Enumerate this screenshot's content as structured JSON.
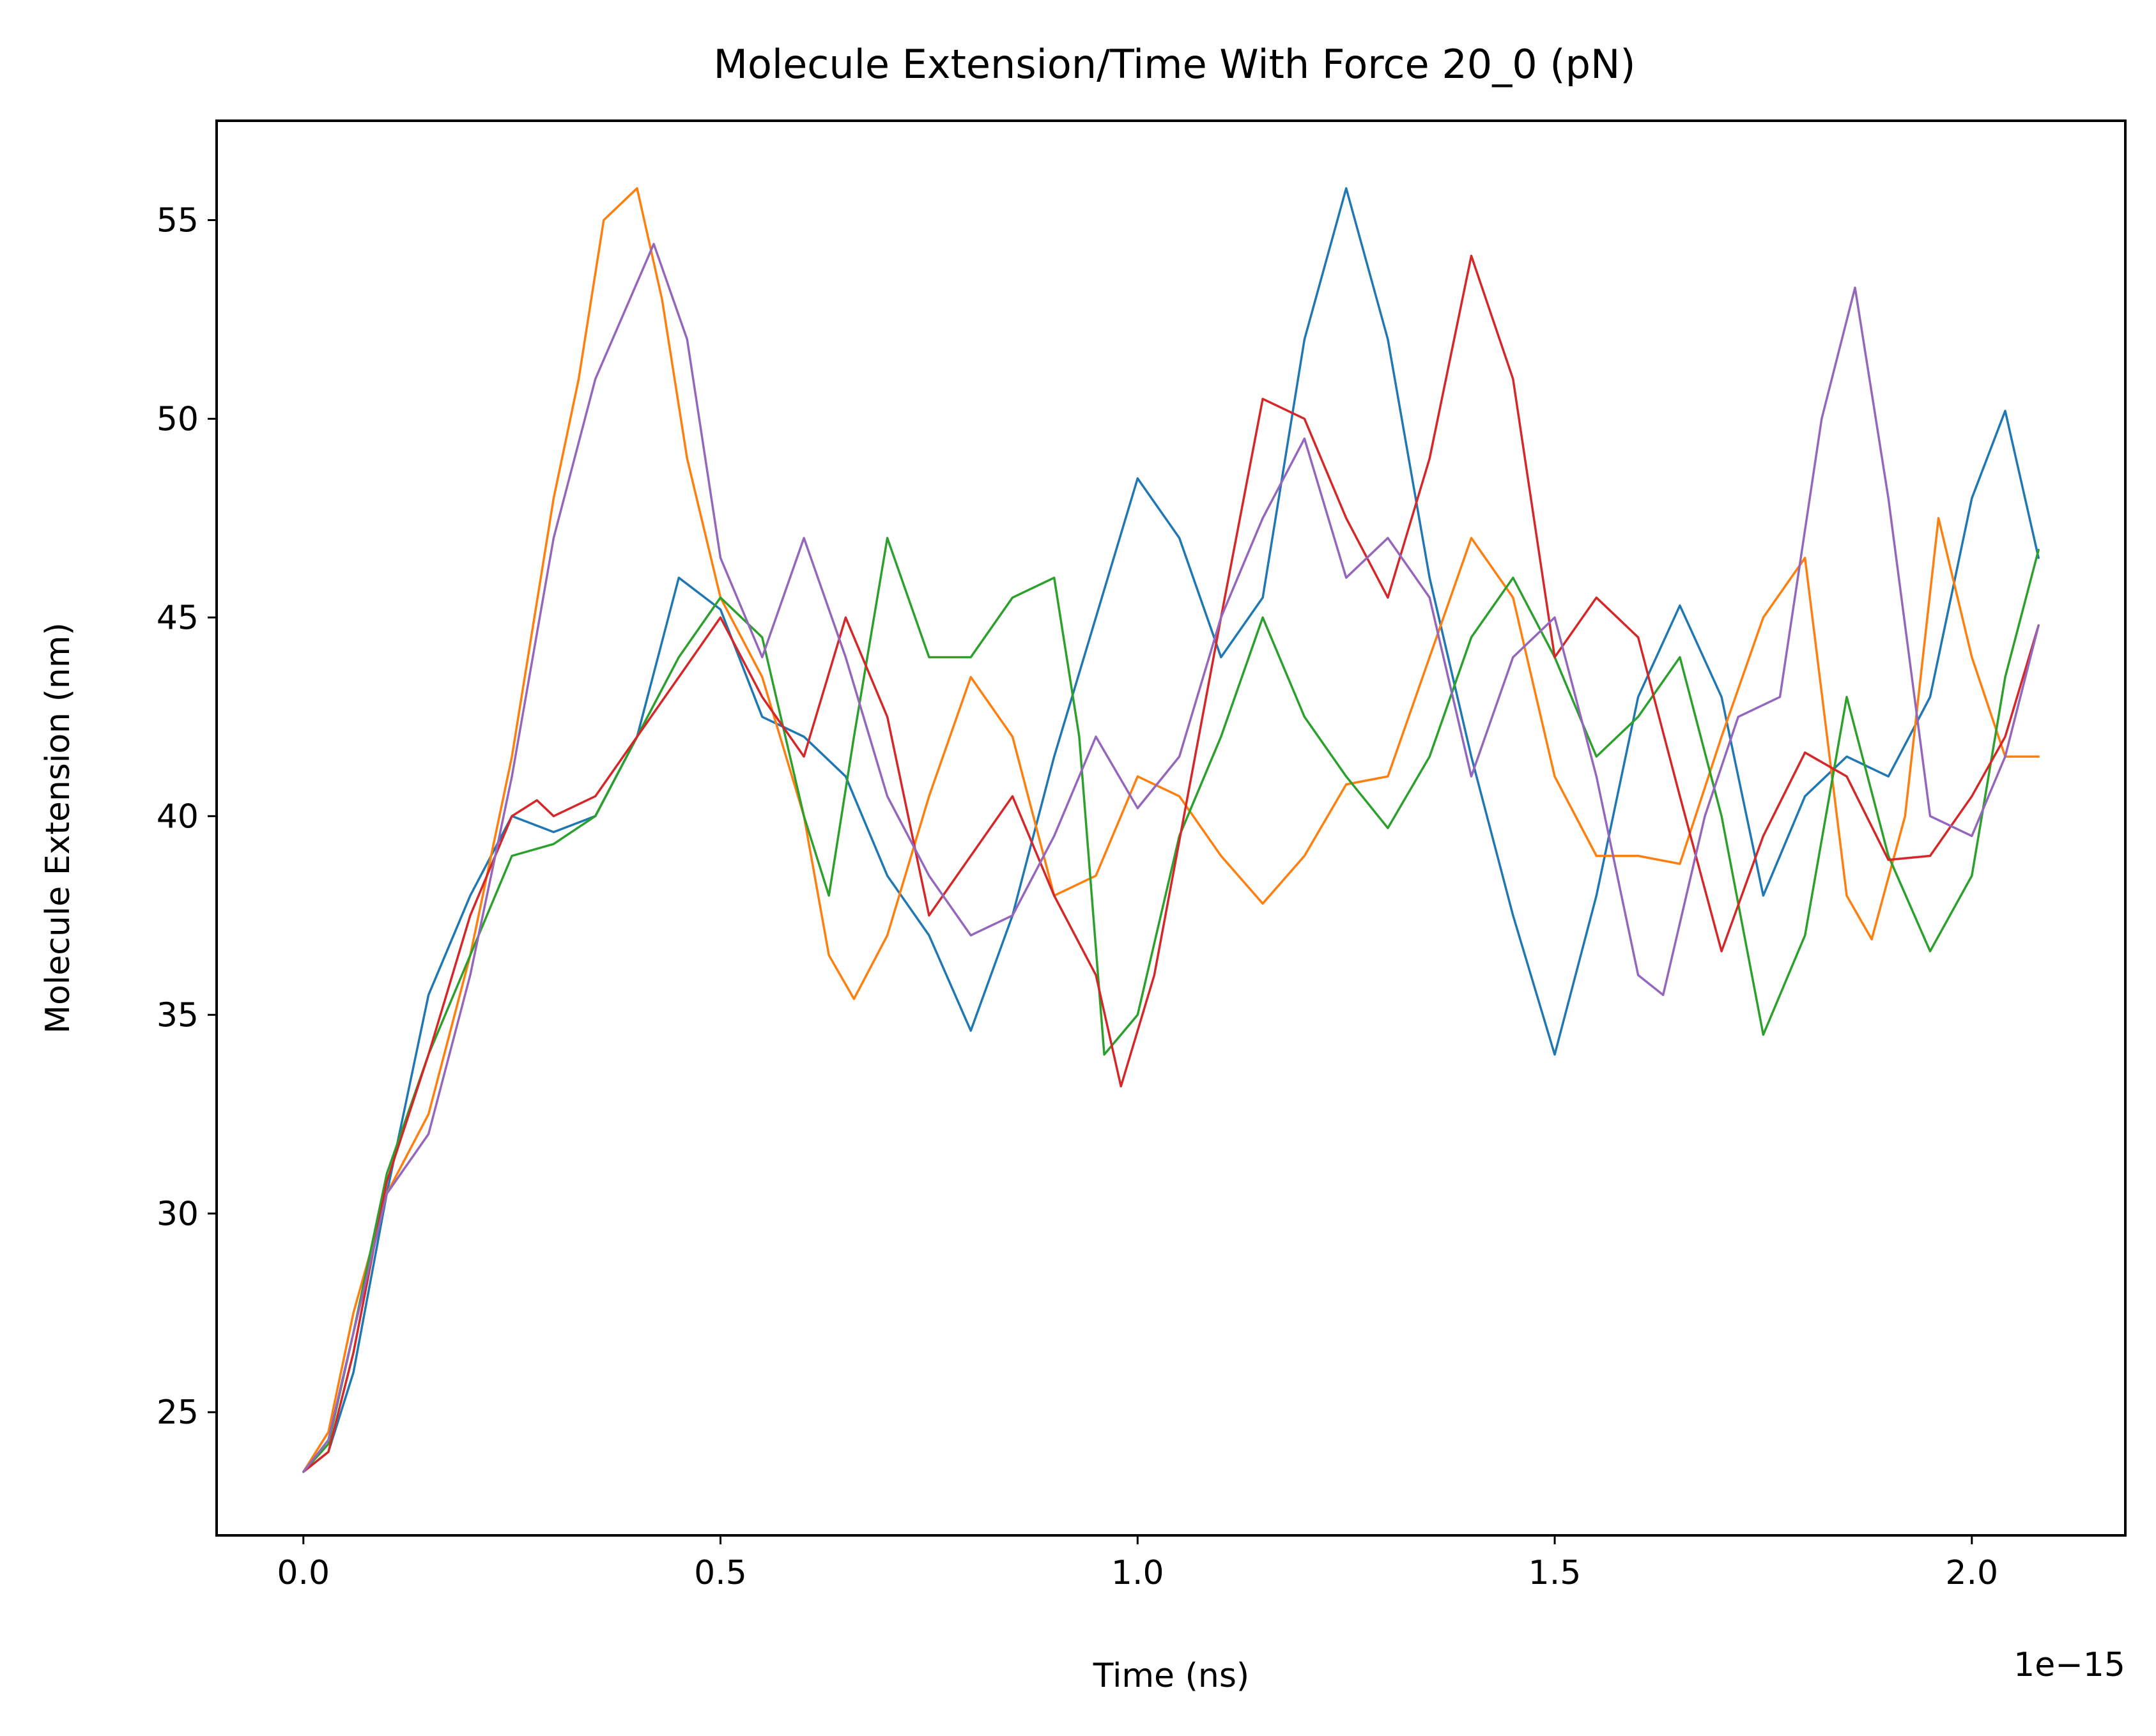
{
  "chart_data": {
    "type": "line",
    "title": "Molecule Extension/Time With Force 20_0 (pN)",
    "xlabel": "Time (ns)",
    "ylabel": "Molecule Extension (nm)",
    "x_offset_label": "1e−15",
    "xlim": [
      -0.104,
      2.184
    ],
    "ylim": [
      21.9,
      57.5
    ],
    "x_ticks": [
      0.0,
      0.5,
      1.0,
      1.5,
      2.0
    ],
    "x_tick_labels": [
      "0.0",
      "0.5",
      "1.0",
      "1.5",
      "2.0"
    ],
    "y_ticks": [
      25,
      30,
      35,
      40,
      45,
      50,
      55
    ],
    "y_tick_labels": [
      "25",
      "30",
      "35",
      "40",
      "45",
      "50",
      "55"
    ],
    "grid": false,
    "legend": "none",
    "series": [
      {
        "color": "#1f77b4",
        "points": [
          [
            0.0,
            23.5
          ],
          [
            0.03,
            24.0
          ],
          [
            0.06,
            26.0
          ],
          [
            0.1,
            30.5
          ],
          [
            0.15,
            35.5
          ],
          [
            0.2,
            38.0
          ],
          [
            0.25,
            40.0
          ],
          [
            0.3,
            39.6
          ],
          [
            0.35,
            40.0
          ],
          [
            0.4,
            42.0
          ],
          [
            0.45,
            46.0
          ],
          [
            0.5,
            45.2
          ],
          [
            0.55,
            42.5
          ],
          [
            0.6,
            42.0
          ],
          [
            0.65,
            41.0
          ],
          [
            0.7,
            38.5
          ],
          [
            0.75,
            37.0
          ],
          [
            0.8,
            34.6
          ],
          [
            0.85,
            37.5
          ],
          [
            0.9,
            41.5
          ],
          [
            0.95,
            45.0
          ],
          [
            1.0,
            48.5
          ],
          [
            1.05,
            47.0
          ],
          [
            1.1,
            44.0
          ],
          [
            1.15,
            45.5
          ],
          [
            1.2,
            52.0
          ],
          [
            1.25,
            55.8
          ],
          [
            1.3,
            52.0
          ],
          [
            1.35,
            46.0
          ],
          [
            1.4,
            41.5
          ],
          [
            1.45,
            37.5
          ],
          [
            1.5,
            34.0
          ],
          [
            1.55,
            38.0
          ],
          [
            1.6,
            43.0
          ],
          [
            1.65,
            45.3
          ],
          [
            1.7,
            43.0
          ],
          [
            1.75,
            38.0
          ],
          [
            1.8,
            40.5
          ],
          [
            1.85,
            41.5
          ],
          [
            1.9,
            41.0
          ],
          [
            1.95,
            43.0
          ],
          [
            2.0,
            48.0
          ],
          [
            2.04,
            50.2
          ],
          [
            2.08,
            46.5
          ]
        ]
      },
      {
        "color": "#ff7f0e",
        "points": [
          [
            0.0,
            23.5
          ],
          [
            0.03,
            24.5
          ],
          [
            0.06,
            27.5
          ],
          [
            0.1,
            30.5
          ],
          [
            0.15,
            32.5
          ],
          [
            0.2,
            36.5
          ],
          [
            0.25,
            41.5
          ],
          [
            0.3,
            48.0
          ],
          [
            0.33,
            51.0
          ],
          [
            0.36,
            55.0
          ],
          [
            0.4,
            55.8
          ],
          [
            0.43,
            53.0
          ],
          [
            0.46,
            49.0
          ],
          [
            0.5,
            45.5
          ],
          [
            0.55,
            43.5
          ],
          [
            0.6,
            40.0
          ],
          [
            0.63,
            36.5
          ],
          [
            0.66,
            35.4
          ],
          [
            0.7,
            37.0
          ],
          [
            0.75,
            40.5
          ],
          [
            0.8,
            43.5
          ],
          [
            0.85,
            42.0
          ],
          [
            0.9,
            38.0
          ],
          [
            0.95,
            38.5
          ],
          [
            1.0,
            41.0
          ],
          [
            1.05,
            40.5
          ],
          [
            1.1,
            39.0
          ],
          [
            1.15,
            37.8
          ],
          [
            1.2,
            39.0
          ],
          [
            1.25,
            40.8
          ],
          [
            1.3,
            41.0
          ],
          [
            1.35,
            44.0
          ],
          [
            1.4,
            47.0
          ],
          [
            1.45,
            45.5
          ],
          [
            1.5,
            41.0
          ],
          [
            1.55,
            39.0
          ],
          [
            1.6,
            39.0
          ],
          [
            1.65,
            38.8
          ],
          [
            1.7,
            42.0
          ],
          [
            1.75,
            45.0
          ],
          [
            1.8,
            46.5
          ],
          [
            1.85,
            38.0
          ],
          [
            1.88,
            36.9
          ],
          [
            1.92,
            40.0
          ],
          [
            1.96,
            47.5
          ],
          [
            2.0,
            44.0
          ],
          [
            2.04,
            41.5
          ],
          [
            2.08,
            41.5
          ]
        ]
      },
      {
        "color": "#2ca02c",
        "points": [
          [
            0.0,
            23.5
          ],
          [
            0.03,
            24.2
          ],
          [
            0.06,
            27.0
          ],
          [
            0.1,
            31.0
          ],
          [
            0.15,
            34.0
          ],
          [
            0.2,
            36.5
          ],
          [
            0.25,
            39.0
          ],
          [
            0.3,
            39.3
          ],
          [
            0.35,
            40.0
          ],
          [
            0.4,
            42.0
          ],
          [
            0.45,
            44.0
          ],
          [
            0.5,
            45.5
          ],
          [
            0.55,
            44.5
          ],
          [
            0.6,
            40.0
          ],
          [
            0.63,
            38.0
          ],
          [
            0.66,
            42.0
          ],
          [
            0.7,
            47.0
          ],
          [
            0.75,
            44.0
          ],
          [
            0.8,
            44.0
          ],
          [
            0.85,
            45.5
          ],
          [
            0.9,
            46.0
          ],
          [
            0.93,
            42.0
          ],
          [
            0.96,
            34.0
          ],
          [
            1.0,
            35.0
          ],
          [
            1.05,
            39.5
          ],
          [
            1.1,
            42.0
          ],
          [
            1.15,
            45.0
          ],
          [
            1.2,
            42.5
          ],
          [
            1.25,
            41.0
          ],
          [
            1.3,
            39.7
          ],
          [
            1.35,
            41.5
          ],
          [
            1.4,
            44.5
          ],
          [
            1.45,
            46.0
          ],
          [
            1.5,
            44.0
          ],
          [
            1.55,
            41.5
          ],
          [
            1.6,
            42.5
          ],
          [
            1.65,
            44.0
          ],
          [
            1.7,
            40.0
          ],
          [
            1.75,
            34.5
          ],
          [
            1.8,
            37.0
          ],
          [
            1.85,
            43.0
          ],
          [
            1.9,
            39.0
          ],
          [
            1.95,
            36.6
          ],
          [
            2.0,
            38.5
          ],
          [
            2.04,
            43.5
          ],
          [
            2.08,
            46.7
          ]
        ]
      },
      {
        "color": "#d62728",
        "points": [
          [
            0.0,
            23.5
          ],
          [
            0.03,
            24.0
          ],
          [
            0.06,
            26.5
          ],
          [
            0.1,
            30.8
          ],
          [
            0.15,
            34.0
          ],
          [
            0.2,
            37.5
          ],
          [
            0.25,
            40.0
          ],
          [
            0.28,
            40.4
          ],
          [
            0.3,
            40.0
          ],
          [
            0.35,
            40.5
          ],
          [
            0.4,
            42.0
          ],
          [
            0.45,
            43.5
          ],
          [
            0.5,
            45.0
          ],
          [
            0.55,
            43.0
          ],
          [
            0.6,
            41.5
          ],
          [
            0.65,
            45.0
          ],
          [
            0.7,
            42.5
          ],
          [
            0.75,
            37.5
          ],
          [
            0.8,
            39.0
          ],
          [
            0.85,
            40.5
          ],
          [
            0.9,
            38.0
          ],
          [
            0.95,
            36.0
          ],
          [
            0.98,
            33.2
          ],
          [
            1.02,
            36.0
          ],
          [
            1.06,
            40.5
          ],
          [
            1.1,
            45.0
          ],
          [
            1.15,
            50.5
          ],
          [
            1.2,
            50.0
          ],
          [
            1.25,
            47.5
          ],
          [
            1.3,
            45.5
          ],
          [
            1.35,
            49.0
          ],
          [
            1.4,
            54.1
          ],
          [
            1.45,
            51.0
          ],
          [
            1.5,
            44.0
          ],
          [
            1.55,
            45.5
          ],
          [
            1.6,
            44.5
          ],
          [
            1.65,
            40.5
          ],
          [
            1.7,
            36.6
          ],
          [
            1.75,
            39.5
          ],
          [
            1.8,
            41.6
          ],
          [
            1.85,
            41.0
          ],
          [
            1.9,
            38.9
          ],
          [
            1.95,
            39.0
          ],
          [
            2.0,
            40.5
          ],
          [
            2.04,
            42.0
          ],
          [
            2.08,
            44.8
          ]
        ]
      },
      {
        "color": "#9467bd",
        "points": [
          [
            0.0,
            23.5
          ],
          [
            0.03,
            24.3
          ],
          [
            0.06,
            27.0
          ],
          [
            0.1,
            30.5
          ],
          [
            0.15,
            32.0
          ],
          [
            0.2,
            36.0
          ],
          [
            0.25,
            41.0
          ],
          [
            0.3,
            47.0
          ],
          [
            0.35,
            51.0
          ],
          [
            0.42,
            54.4
          ],
          [
            0.46,
            52.0
          ],
          [
            0.5,
            46.5
          ],
          [
            0.55,
            44.0
          ],
          [
            0.6,
            47.0
          ],
          [
            0.65,
            44.0
          ],
          [
            0.7,
            40.5
          ],
          [
            0.75,
            38.5
          ],
          [
            0.8,
            37.0
          ],
          [
            0.85,
            37.5
          ],
          [
            0.9,
            39.5
          ],
          [
            0.95,
            42.0
          ],
          [
            1.0,
            40.2
          ],
          [
            1.05,
            41.5
          ],
          [
            1.1,
            45.0
          ],
          [
            1.15,
            47.5
          ],
          [
            1.2,
            49.5
          ],
          [
            1.25,
            46.0
          ],
          [
            1.3,
            47.0
          ],
          [
            1.35,
            45.5
          ],
          [
            1.4,
            41.0
          ],
          [
            1.45,
            44.0
          ],
          [
            1.5,
            45.0
          ],
          [
            1.55,
            41.0
          ],
          [
            1.6,
            36.0
          ],
          [
            1.63,
            35.5
          ],
          [
            1.68,
            40.0
          ],
          [
            1.72,
            42.5
          ],
          [
            1.77,
            43.0
          ],
          [
            1.82,
            50.0
          ],
          [
            1.86,
            53.3
          ],
          [
            1.9,
            48.0
          ],
          [
            1.95,
            40.0
          ],
          [
            2.0,
            39.5
          ],
          [
            2.04,
            41.5
          ],
          [
            2.08,
            44.8
          ]
        ]
      }
    ]
  }
}
